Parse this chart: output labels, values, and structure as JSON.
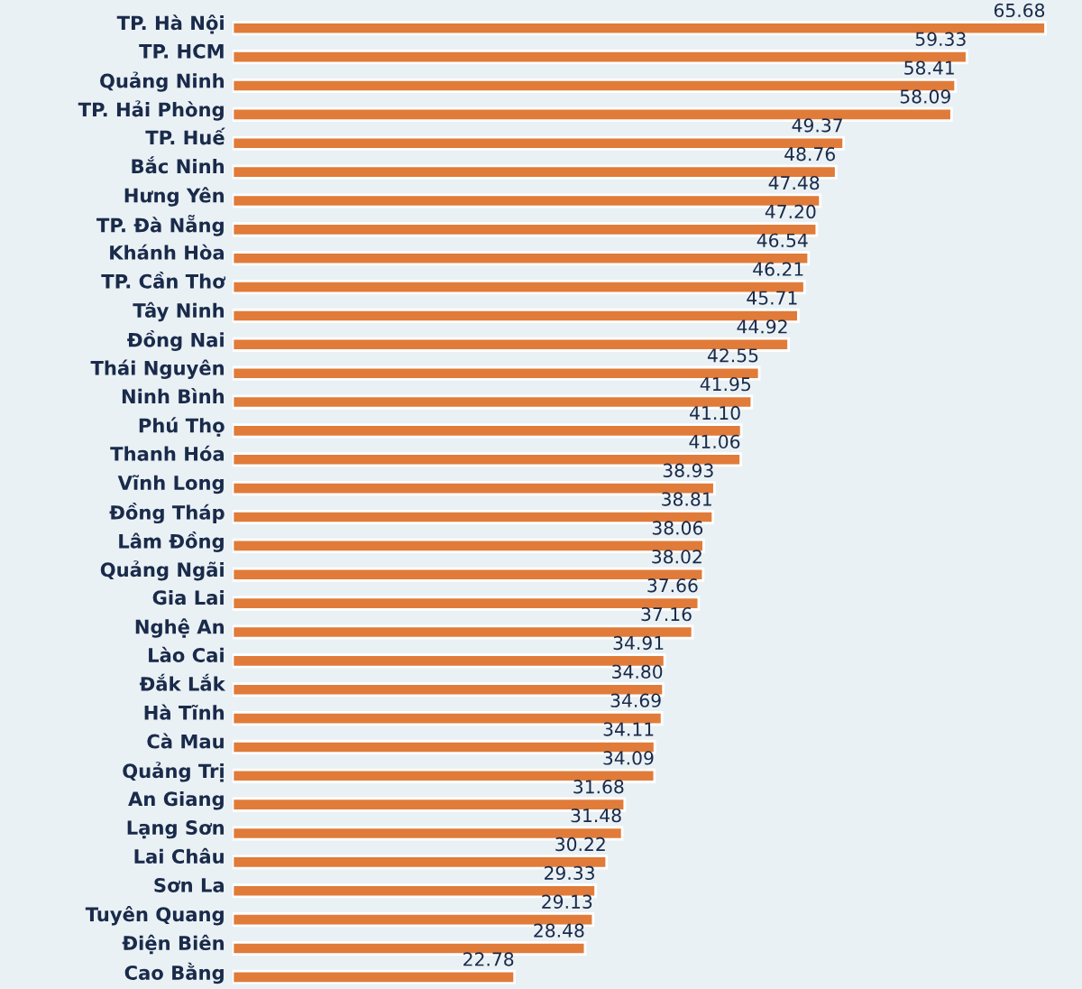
{
  "chart_data": {
    "type": "bar",
    "orientation": "horizontal",
    "color": "#e07b39",
    "categories": [
      "TP. Hà Nội",
      "TP. HCM",
      "Quảng Ninh",
      "TP. Hải Phòng",
      "TP. Huế",
      "Bắc Ninh",
      "Hưng Yên",
      "TP. Đà Nẵng",
      "Khánh Hòa",
      "TP. Cần Thơ",
      "Tây Ninh",
      "Đồng Nai",
      "Thái Nguyên",
      "Ninh Bình",
      "Phú Thọ",
      "Thanh Hóa",
      "Vĩnh Long",
      "Đồng Tháp",
      "Lâm Đồng",
      "Quảng Ngãi",
      "Gia Lai",
      "Nghệ An",
      "Lào Cai",
      "Đắk Lắk",
      "Hà Tĩnh",
      "Cà Mau",
      "Quảng Trị",
      "An Giang",
      "Lạng Sơn",
      "Lai Châu",
      "Sơn La",
      "Tuyên Quang",
      "Điện Biên",
      "Cao Bằng"
    ],
    "values": [
      65.68,
      59.33,
      58.41,
      58.09,
      49.37,
      48.76,
      47.48,
      47.2,
      46.54,
      46.21,
      45.71,
      44.92,
      42.55,
      41.95,
      41.1,
      41.06,
      38.93,
      38.81,
      38.06,
      38.02,
      37.66,
      37.16,
      34.91,
      34.8,
      34.69,
      34.11,
      34.09,
      31.68,
      31.48,
      30.22,
      29.33,
      29.13,
      28.48,
      22.78
    ],
    "value_labels": [
      "65.68",
      "59.33",
      "58.41",
      "58.09",
      "49.37",
      "48.76",
      "47.48",
      "47.20",
      "46.54",
      "46.21",
      "45.71",
      "44.92",
      "42.55",
      "41.95",
      "41.10",
      "41.06",
      "38.93",
      "38.81",
      "38.06",
      "38.02",
      "37.66",
      "37.16",
      "34.91",
      "34.80",
      "34.69",
      "34.11",
      "34.09",
      "31.68",
      "31.48",
      "30.22",
      "29.33",
      "29.13",
      "28.48",
      "22.78"
    ]
  }
}
